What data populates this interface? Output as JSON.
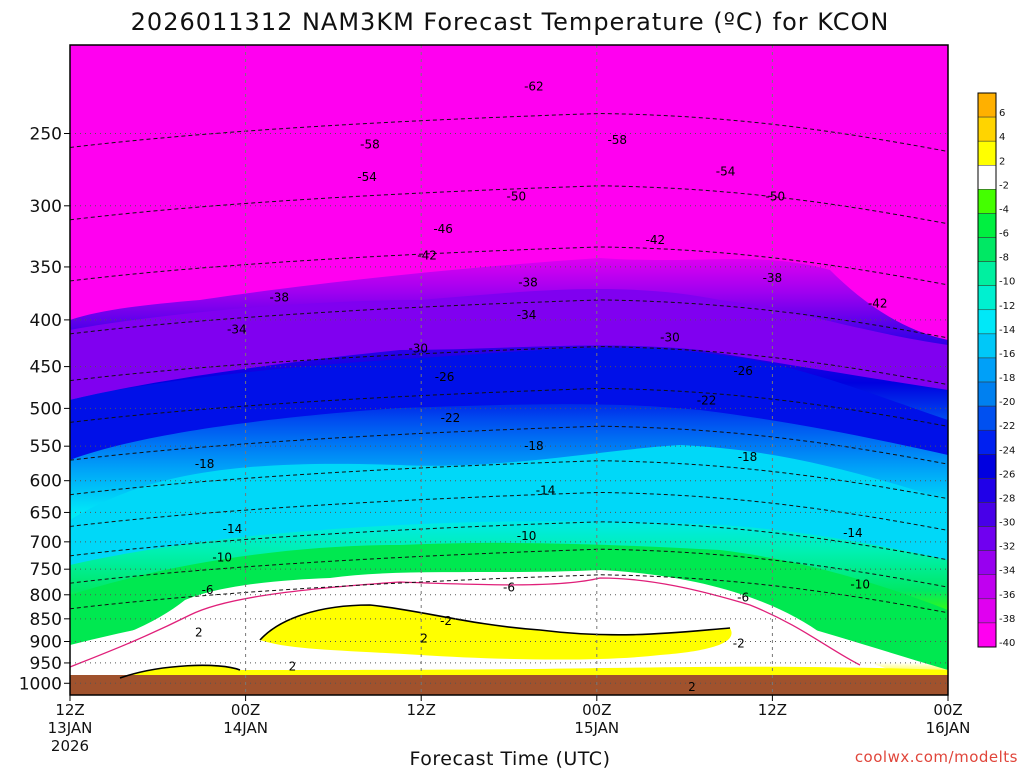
{
  "chart_data": {
    "type": "heatmap",
    "title": "2026011312 NAM3KM Forecast Temperature (ºC) for KCON",
    "xlabel": "Forecast Time (UTC)",
    "ylabel": "",
    "credit": "coolwx.com/modelts",
    "x_ticks": [
      {
        "hour": 0,
        "lines": [
          "12Z",
          "13JAN",
          "2026"
        ]
      },
      {
        "hour": 12,
        "lines": [
          "00Z",
          "14JAN"
        ]
      },
      {
        "hour": 24,
        "lines": [
          "12Z"
        ]
      },
      {
        "hour": 36,
        "lines": [
          "00Z",
          "15JAN"
        ]
      },
      {
        "hour": 48,
        "lines": [
          "12Z"
        ]
      },
      {
        "hour": 60,
        "lines": [
          "00Z",
          "16JAN"
        ]
      }
    ],
    "xlim": [
      0,
      60
    ],
    "y_ticks": [
      250,
      300,
      350,
      400,
      450,
      500,
      550,
      600,
      650,
      700,
      750,
      800,
      850,
      900,
      950,
      1000
    ],
    "ylim": [
      1030,
      200
    ],
    "y_scale": "log",
    "grid": true,
    "colorbar": {
      "labels": [
        "6",
        "4",
        "2",
        "-2",
        "-4",
        "-6",
        "-8",
        "-10",
        "-12",
        "-14",
        "-16",
        "-18",
        "-20",
        "-22",
        "-24",
        "-26",
        "-28",
        "-30",
        "-32",
        "-34",
        "-36",
        "-38",
        "-40"
      ],
      "colors": [
        "#ffb000",
        "#ffd400",
        "#ffff00",
        "#ffffff",
        "#44ff00",
        "#00f040",
        "#00e864",
        "#00f0a0",
        "#00f0d0",
        "#00e8f8",
        "#00c8f8",
        "#00a0f8",
        "#0080f0",
        "#0050f0",
        "#0020f0",
        "#0000e0",
        "#2000e8",
        "#4800e8",
        "#7000f0",
        "#9800f0",
        "#c000f0",
        "#e000f0",
        "#ff00f0"
      ]
    },
    "contour_labels": [
      {
        "text": "-62",
        "x": 31.7,
        "p": 222
      },
      {
        "text": "-58",
        "x": 20.5,
        "p": 257
      },
      {
        "text": "-58",
        "x": 37.4,
        "p": 254
      },
      {
        "text": "-54",
        "x": 20.3,
        "p": 279
      },
      {
        "text": "-54",
        "x": 44.8,
        "p": 275
      },
      {
        "text": "-50",
        "x": 30.5,
        "p": 293
      },
      {
        "text": "-50",
        "x": 48.2,
        "p": 293
      },
      {
        "text": "-46",
        "x": 25.5,
        "p": 318
      },
      {
        "text": "-42",
        "x": 24.4,
        "p": 340
      },
      {
        "text": "-42",
        "x": 40.0,
        "p": 327
      },
      {
        "text": "-42",
        "x": 55.2,
        "p": 384
      },
      {
        "text": "-38",
        "x": 14.3,
        "p": 378
      },
      {
        "text": "-38",
        "x": 31.3,
        "p": 364
      },
      {
        "text": "-38",
        "x": 48.0,
        "p": 360
      },
      {
        "text": "-34",
        "x": 11.4,
        "p": 410
      },
      {
        "text": "-34",
        "x": 31.2,
        "p": 395
      },
      {
        "text": "-30",
        "x": 23.8,
        "p": 430
      },
      {
        "text": "-30",
        "x": 41.0,
        "p": 418
      },
      {
        "text": "-26",
        "x": 25.6,
        "p": 462
      },
      {
        "text": "-26",
        "x": 46.0,
        "p": 455
      },
      {
        "text": "-22",
        "x": 26.0,
        "p": 512
      },
      {
        "text": "-22",
        "x": 43.5,
        "p": 490
      },
      {
        "text": "-18",
        "x": 9.2,
        "p": 575
      },
      {
        "text": "-18",
        "x": 31.7,
        "p": 550
      },
      {
        "text": "-18",
        "x": 46.3,
        "p": 565
      },
      {
        "text": "-14",
        "x": 11.1,
        "p": 678
      },
      {
        "text": "-14",
        "x": 32.5,
        "p": 615
      },
      {
        "text": "-14",
        "x": 53.5,
        "p": 685
      },
      {
        "text": "-10",
        "x": 10.4,
        "p": 728
      },
      {
        "text": "-10",
        "x": 31.2,
        "p": 690
      },
      {
        "text": "-10",
        "x": 54.0,
        "p": 780
      },
      {
        "text": "-6",
        "x": 9.4,
        "p": 790
      },
      {
        "text": "-6",
        "x": 30.0,
        "p": 785
      },
      {
        "text": "-6",
        "x": 46.0,
        "p": 805
      },
      {
        "text": "-2",
        "x": 25.7,
        "p": 855
      },
      {
        "text": "-2",
        "x": 45.7,
        "p": 905
      },
      {
        "text": "2",
        "x": 8.8,
        "p": 880
      },
      {
        "text": "2",
        "x": 24.2,
        "p": 893
      },
      {
        "text": "2",
        "x": 15.2,
        "p": 958
      },
      {
        "text": "2",
        "x": 42.5,
        "p": 1010
      }
    ]
  }
}
